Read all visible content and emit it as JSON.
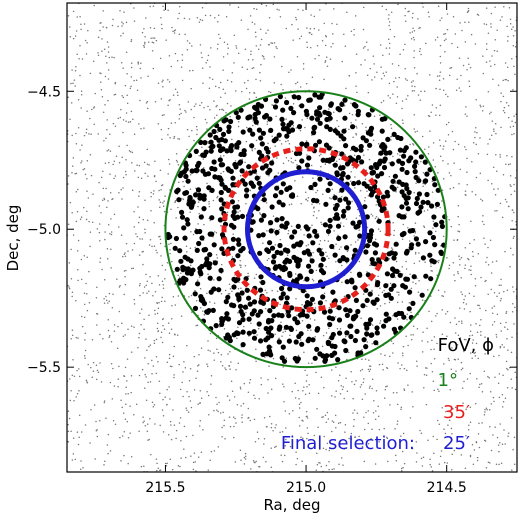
{
  "chart_data": {
    "type": "scatter",
    "title": "",
    "xlabel": "Ra, deg",
    "ylabel": "Dec, deg",
    "xlim": [
      215.85,
      214.25
    ],
    "ylim": [
      -5.88,
      -4.18
    ],
    "x_reversed": true,
    "grid": false,
    "x_ticks": [
      215.5,
      215.0,
      214.5
    ],
    "x_tick_labels": [
      "215.5",
      "215.0",
      "214.5"
    ],
    "y_ticks": [
      -4.5,
      -5.0,
      -5.5
    ],
    "y_tick_labels": [
      "−4.5",
      "−5.0",
      "−5.5"
    ],
    "center": [
      215.0,
      -5.0
    ],
    "circles": [
      {
        "label": "1°",
        "radius_deg": 0.5,
        "color": "#1a801a",
        "style": "solid",
        "stroke": "thin"
      },
      {
        "label": "35′",
        "radius_deg": 0.2917,
        "color": "#e8201c",
        "style": "dashed",
        "stroke": "thick"
      },
      {
        "label": "25′",
        "radius_deg": 0.2083,
        "color": "#1f1fd1",
        "style": "solid",
        "stroke": "thick"
      }
    ],
    "series": [
      {
        "description": "background field sources",
        "color": "#777777",
        "marker": "small-dot",
        "density": "uniform",
        "approx_count": 3000
      },
      {
        "description": "sources inside 1° field of view",
        "color": "#000000",
        "marker": "large-dot",
        "approx_count": 950
      }
    ],
    "legend": {
      "placement": "bottom-right",
      "header": "FoV, ϕ",
      "header_color": "#000000",
      "entries": [
        {
          "text": "1°",
          "color": "#1a801a"
        },
        {
          "text": "35′",
          "color": "#e8201c"
        },
        {
          "prefix": "Final selection:",
          "text": "25′",
          "color": "#1f1fd1"
        }
      ]
    }
  }
}
